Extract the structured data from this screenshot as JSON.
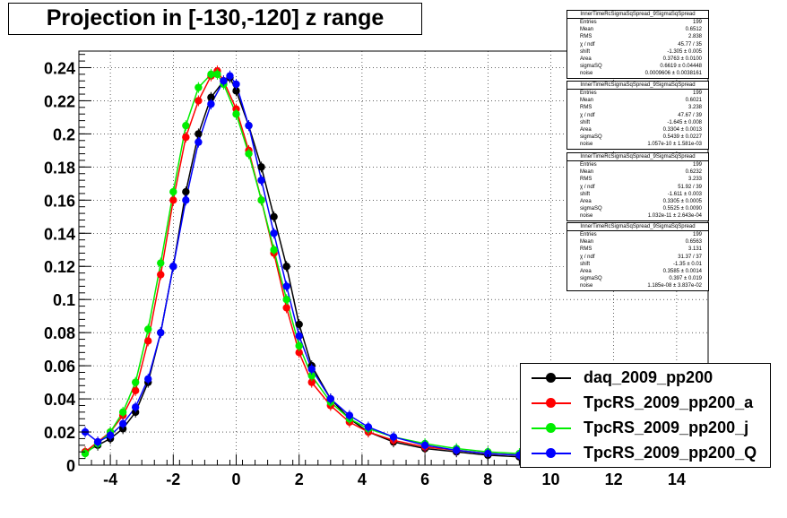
{
  "title": "Projection in [-130,-120] z range",
  "stat_boxes": [
    {
      "name": "InnerTimeRcSigmaSqSpread_9SigmaSqSpread",
      "rows": [
        [
          "Entries",
          "199"
        ],
        [
          "Mean",
          "0.6512"
        ],
        [
          "RMS",
          "2.838"
        ],
        [
          "χ  / ndf",
          "45.77 / 35"
        ],
        [
          "shift",
          "-1.305 ± 0.005"
        ],
        [
          "Area",
          "0.3763 ± 0.0100"
        ],
        [
          "sigmaSQ",
          "0.6619 ± 0.04448"
        ],
        [
          "noise",
          "0.0009606 ± 0.0038161"
        ]
      ]
    },
    {
      "name": "InnerTimeRcSigmaSqSpread_9SigmaSqSpread",
      "rows": [
        [
          "Entries",
          "199"
        ],
        [
          "Mean",
          "0.6021"
        ],
        [
          "RMS",
          "3.238"
        ],
        [
          "χ  / ndf",
          "47.67 / 39"
        ],
        [
          "shift",
          "-1.645 ± 0.008"
        ],
        [
          "Area",
          "0.3304 ± 0.0013"
        ],
        [
          "sigmaSQ",
          "0.5439 ± 0.0227"
        ],
        [
          "noise",
          "1.057e-10 ± 1.581e-03"
        ]
      ]
    },
    {
      "name": "InnerTimeRcSigmaSqSpread_9SigmaSqSpread",
      "rows": [
        [
          "Entries",
          "199"
        ],
        [
          "Mean",
          "0.6232"
        ],
        [
          "RMS",
          "3.233"
        ],
        [
          "χ  / ndf",
          "51.92 / 39"
        ],
        [
          "shift",
          "-1.611 ± 0.003"
        ],
        [
          "Area",
          "0.3305 ± 0.0005"
        ],
        [
          "sigmaSQ",
          "0.5525 ± 0.0090"
        ],
        [
          "noise",
          "1.032e-11 ± 2.643e-04"
        ]
      ]
    },
    {
      "name": "InnerTimeRcSigmaSqSpread_9SigmaSqSpread",
      "rows": [
        [
          "Entries",
          "199"
        ],
        [
          "Mean",
          "0.6563"
        ],
        [
          "RMS",
          "3.131"
        ],
        [
          "χ  / ndf",
          "31.37 / 37"
        ],
        [
          "shift",
          "-1.35 ± 0.01"
        ],
        [
          "Area",
          "0.3585 ± 0.0014"
        ],
        [
          "sigmaSQ",
          "0.397 ± 0.019"
        ],
        [
          "noise",
          "1.185e-08 ± 3.837e-02"
        ]
      ]
    }
  ],
  "legend": [
    {
      "label": "daq_2009_pp200",
      "color": "#000000"
    },
    {
      "label": "TpcRS_2009_pp200_a",
      "color": "#ff0000"
    },
    {
      "label": "TpcRS_2009_pp200_j",
      "color": "#00ee00"
    },
    {
      "label": "TpcRS_2009_pp200_Q",
      "color": "#0000ff"
    }
  ],
  "chart_data": {
    "type": "scatter",
    "title": "Projection in [-130,-120] z range",
    "xlabel": "",
    "ylabel": "",
    "xlim": [
      -5,
      15
    ],
    "ylim": [
      0,
      0.25
    ],
    "grid": true,
    "x_ticks": [
      "-4",
      "-2",
      "0",
      "2",
      "4",
      "6",
      "8",
      "10",
      "12",
      "14"
    ],
    "x_tick_values": [
      -4,
      -2,
      0,
      2,
      4,
      6,
      8,
      10,
      12,
      14
    ],
    "y_ticks": [
      "0",
      "0.02",
      "0.04",
      "0.06",
      "0.08",
      "0.1",
      "0.12",
      "0.14",
      "0.16",
      "0.18",
      "0.2",
      "0.22",
      "0.24"
    ],
    "y_tick_values": [
      0,
      0.02,
      0.04,
      0.06,
      0.08,
      0.1,
      0.12,
      0.14,
      0.16,
      0.18,
      0.2,
      0.22,
      0.24
    ],
    "legend_position": "bottom-right",
    "series": [
      {
        "name": "daq_2009_pp200",
        "color": "#000000",
        "x": [
          -4.8,
          -4.4,
          -4.0,
          -3.6,
          -3.2,
          -2.8,
          -2.4,
          -2.0,
          -1.6,
          -1.2,
          -0.8,
          -0.4,
          -0.2,
          0.0,
          0.4,
          0.8,
          1.2,
          1.6,
          2.0,
          2.4,
          3.0,
          3.6,
          4.2,
          5.0,
          6.0,
          7.0,
          8.0,
          9.0
        ],
        "y": [
          0.008,
          0.012,
          0.016,
          0.022,
          0.032,
          0.05,
          0.08,
          0.12,
          0.165,
          0.2,
          0.222,
          0.232,
          0.234,
          0.226,
          0.205,
          0.18,
          0.15,
          0.12,
          0.085,
          0.06,
          0.04,
          0.028,
          0.02,
          0.014,
          0.01,
          0.008,
          0.006,
          0.005
        ]
      },
      {
        "name": "TpcRS_2009_pp200_a",
        "color": "#ff0000",
        "x": [
          -4.8,
          -4.4,
          -4.0,
          -3.6,
          -3.2,
          -2.8,
          -2.4,
          -2.0,
          -1.6,
          -1.2,
          -0.8,
          -0.6,
          -0.4,
          0.0,
          0.4,
          0.8,
          1.2,
          1.6,
          2.0,
          2.4,
          3.0,
          3.6,
          4.2,
          5.0,
          6.0,
          7.0,
          8.0,
          9.0
        ],
        "y": [
          0.008,
          0.014,
          0.02,
          0.03,
          0.045,
          0.075,
          0.115,
          0.16,
          0.198,
          0.22,
          0.235,
          0.238,
          0.232,
          0.215,
          0.19,
          0.16,
          0.128,
          0.095,
          0.068,
          0.05,
          0.036,
          0.026,
          0.02,
          0.015,
          0.011,
          0.009,
          0.007,
          0.006
        ]
      },
      {
        "name": "TpcRS_2009_pp200_j",
        "color": "#00ee00",
        "x": [
          -4.8,
          -4.4,
          -4.0,
          -3.6,
          -3.2,
          -2.8,
          -2.4,
          -2.0,
          -1.6,
          -1.2,
          -0.8,
          -0.6,
          -0.4,
          0.0,
          0.4,
          0.8,
          1.2,
          1.6,
          2.0,
          2.4,
          3.0,
          3.6,
          4.2,
          5.0,
          6.0,
          7.0,
          8.0,
          9.0
        ],
        "y": [
          0.007,
          0.013,
          0.02,
          0.032,
          0.05,
          0.082,
          0.122,
          0.165,
          0.205,
          0.228,
          0.236,
          0.236,
          0.23,
          0.212,
          0.188,
          0.16,
          0.13,
          0.1,
          0.072,
          0.054,
          0.038,
          0.028,
          0.022,
          0.017,
          0.013,
          0.01,
          0.008,
          0.007
        ]
      },
      {
        "name": "TpcRS_2009_pp200_Q",
        "color": "#0000ff",
        "x": [
          -4.8,
          -4.4,
          -4.0,
          -3.6,
          -3.2,
          -2.8,
          -2.4,
          -2.0,
          -1.6,
          -1.2,
          -0.8,
          -0.4,
          -0.2,
          0.0,
          0.4,
          0.8,
          1.2,
          1.6,
          2.0,
          2.4,
          3.0,
          3.6,
          4.2,
          5.0,
          6.0,
          7.0,
          8.0,
          9.0
        ],
        "y": [
          0.02,
          0.014,
          0.018,
          0.025,
          0.035,
          0.052,
          0.08,
          0.12,
          0.16,
          0.195,
          0.218,
          0.232,
          0.235,
          0.23,
          0.205,
          0.172,
          0.14,
          0.108,
          0.078,
          0.058,
          0.04,
          0.03,
          0.023,
          0.017,
          0.012,
          0.009,
          0.007,
          0.006
        ]
      }
    ]
  }
}
